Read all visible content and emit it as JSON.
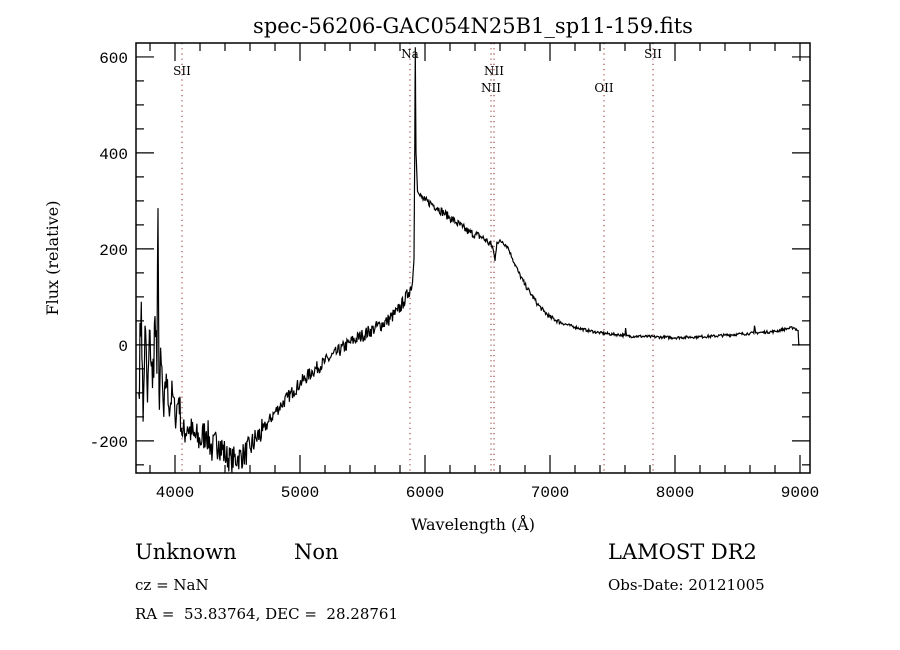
{
  "chart_data": {
    "type": "line",
    "title": "spec-56206-GAC054N25B1_sp11-159.fits",
    "xlabel": "Wavelength (Å)",
    "ylabel": "Flux (relative)",
    "xlim": [
      3688,
      9080
    ],
    "ylim": [
      -267,
      629
    ],
    "x_ticks": [
      4000,
      5000,
      6000,
      7000,
      8000,
      9000
    ],
    "x_tick_labels": [
      "4000",
      "5000",
      "6000",
      "7000",
      "8000",
      "9000"
    ],
    "y_ticks": [
      -200,
      0,
      200,
      400,
      600
    ],
    "y_tick_labels": [
      "-200",
      "0",
      "200",
      "400",
      "600"
    ],
    "grid": false,
    "series": [
      {
        "name": "spectrum",
        "color": "#000000",
        "points": [
          [
            3710,
            -100
          ],
          [
            3730,
            90
          ],
          [
            3745,
            -160
          ],
          [
            3760,
            40
          ],
          [
            3780,
            -120
          ],
          [
            3800,
            30
          ],
          [
            3820,
            -90
          ],
          [
            3840,
            60
          ],
          [
            3855,
            -60
          ],
          [
            3864,
            285
          ],
          [
            3872,
            -100
          ],
          [
            3890,
            -40
          ],
          [
            3910,
            -150
          ],
          [
            3930,
            -60
          ],
          [
            3950,
            -130
          ],
          [
            3980,
            -100
          ],
          [
            4000,
            -150
          ],
          [
            4030,
            -110
          ],
          [
            4060,
            -190
          ],
          [
            4100,
            -170
          ],
          [
            4150,
            -190
          ],
          [
            4200,
            -200
          ],
          [
            4250,
            -180
          ],
          [
            4300,
            -220
          ],
          [
            4350,
            -200
          ],
          [
            4400,
            -230
          ],
          [
            4450,
            -240
          ],
          [
            4500,
            -235
          ],
          [
            4550,
            -230
          ],
          [
            4600,
            -215
          ],
          [
            4650,
            -195
          ],
          [
            4700,
            -180
          ],
          [
            4750,
            -160
          ],
          [
            4800,
            -140
          ],
          [
            4850,
            -125
          ],
          [
            4900,
            -110
          ],
          [
            4950,
            -95
          ],
          [
            5000,
            -80
          ],
          [
            5100,
            -55
          ],
          [
            5200,
            -35
          ],
          [
            5300,
            -15
          ],
          [
            5400,
            5
          ],
          [
            5500,
            20
          ],
          [
            5600,
            35
          ],
          [
            5700,
            50
          ],
          [
            5780,
            70
          ],
          [
            5830,
            90
          ],
          [
            5870,
            110
          ],
          [
            5900,
            130
          ],
          [
            5912,
            180
          ],
          [
            5918,
            420
          ],
          [
            5922,
            620
          ],
          [
            5928,
            400
          ],
          [
            5940,
            320
          ],
          [
            5960,
            310
          ],
          [
            6000,
            300
          ],
          [
            6050,
            295
          ],
          [
            6100,
            285
          ],
          [
            6150,
            275
          ],
          [
            6200,
            265
          ],
          [
            6250,
            255
          ],
          [
            6300,
            245
          ],
          [
            6350,
            235
          ],
          [
            6400,
            230
          ],
          [
            6450,
            225
          ],
          [
            6500,
            215
          ],
          [
            6540,
            205
          ],
          [
            6560,
            175
          ],
          [
            6575,
            215
          ],
          [
            6620,
            215
          ],
          [
            6660,
            205
          ],
          [
            6700,
            180
          ],
          [
            6750,
            150
          ],
          [
            6800,
            125
          ],
          [
            6850,
            105
          ],
          [
            6900,
            85
          ],
          [
            6950,
            70
          ],
          [
            7000,
            58
          ],
          [
            7100,
            45
          ],
          [
            7200,
            37
          ],
          [
            7300,
            30
          ],
          [
            7400,
            25
          ],
          [
            7500,
            22
          ],
          [
            7600,
            20
          ],
          [
            7605,
            35
          ],
          [
            7612,
            18
          ],
          [
            7700,
            18
          ],
          [
            7800,
            17
          ],
          [
            7900,
            16
          ],
          [
            8000,
            15
          ],
          [
            8100,
            16
          ],
          [
            8200,
            17
          ],
          [
            8300,
            18
          ],
          [
            8400,
            20
          ],
          [
            8500,
            22
          ],
          [
            8600,
            24
          ],
          [
            8630,
            24
          ],
          [
            8636,
            40
          ],
          [
            8645,
            25
          ],
          [
            8700,
            26
          ],
          [
            8800,
            28
          ],
          [
            8900,
            34
          ],
          [
            8950,
            36
          ],
          [
            8985,
            30
          ],
          [
            8990,
            0
          ],
          [
            9000,
            0
          ]
        ],
        "noise": [
          [
            3700,
            3900,
            60
          ],
          [
            3900,
            4400,
            35
          ],
          [
            4400,
            4700,
            28
          ],
          [
            4700,
            5900,
            14
          ],
          [
            5960,
            6560,
            9
          ],
          [
            6560,
            7100,
            5
          ],
          [
            7100,
            9000,
            3
          ]
        ]
      }
    ],
    "line_markers": [
      {
        "label": "SII",
        "wavelength": 4056
      },
      {
        "label": "Na",
        "wavelength": 5880
      },
      {
        "label": "NII",
        "wavelength": 6552
      },
      {
        "label": "NII",
        "wavelength": 6528
      },
      {
        "label": "OII",
        "wavelength": 7432
      },
      {
        "label": "SII",
        "wavelength": 7824
      }
    ],
    "marker_color": "#8b2020"
  },
  "footer": {
    "class_text": "Unknown",
    "subclass_text": "Non",
    "survey": "LAMOST DR2",
    "cz": "cz = NaN",
    "obs_date": "Obs-Date: 20121005",
    "coords": "RA =  53.83764, DEC =  28.28761"
  }
}
